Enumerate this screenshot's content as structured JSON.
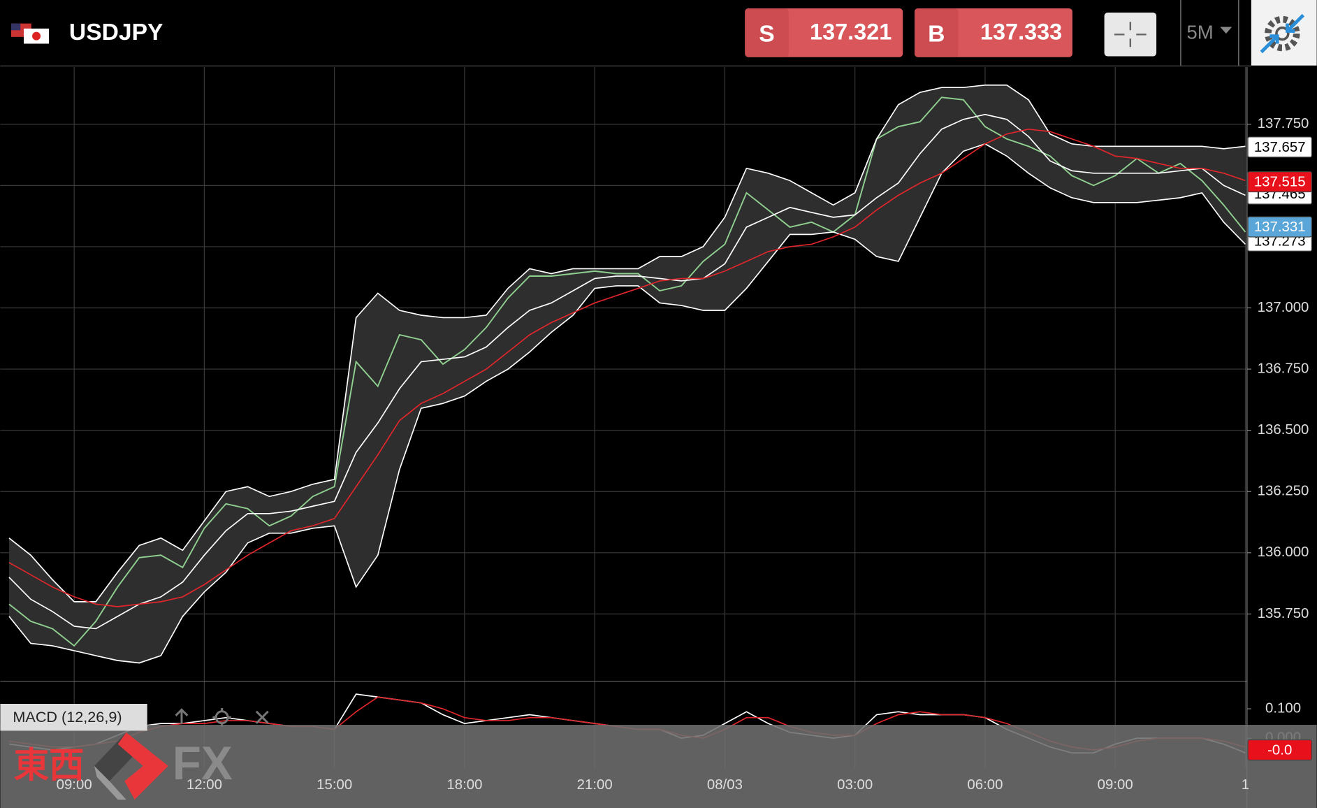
{
  "header": {
    "symbol": "USDJPY",
    "sell_label": "S",
    "sell_price": 137.321,
    "buy_label": "B",
    "buy_price": 137.333,
    "timeframe": "5M"
  },
  "watermark": {
    "text_jp": "東西",
    "text_fx": "FX"
  },
  "chart_data": [
    {
      "type": "line",
      "categories": [
        null,
        null,
        null,
        "09:00",
        null,
        null,
        null,
        null,
        null,
        "12:00",
        null,
        null,
        null,
        null,
        null,
        "15:00",
        null,
        null,
        null,
        null,
        null,
        "18:00",
        null,
        null,
        null,
        null,
        null,
        "21:00",
        null,
        null,
        null,
        null,
        null,
        "08/03",
        null,
        null,
        null,
        null,
        null,
        "03:00",
        null,
        null,
        null,
        null,
        null,
        "06:00",
        null,
        null,
        null,
        null,
        null,
        "09:00",
        null,
        null,
        null,
        null,
        null,
        "1"
      ],
      "ylim": [
        135.479,
        137.983
      ],
      "yticks": [
        {
          "value": 135.75,
          "label": "135.750"
        },
        {
          "value": 136,
          "label": "136.000"
        },
        {
          "value": 136.25,
          "label": "136.250"
        },
        {
          "value": 136.5,
          "label": "136.500"
        },
        {
          "value": 136.75,
          "label": "136.750"
        },
        {
          "value": 137,
          "label": "137.000"
        },
        {
          "value": 137.25,
          "label": "137.250"
        },
        {
          "value": 137.5,
          "label": "137.500"
        },
        {
          "value": 137.75,
          "label": "137.750"
        }
      ],
      "grid": true,
      "band_fill": "#2e2e2e",
      "series": [
        {
          "color": "#8fcf8f",
          "values": [
            135.79,
            135.72,
            135.69,
            135.62,
            135.72,
            135.86,
            135.98,
            135.99,
            135.94,
            136.1,
            136.2,
            136.18,
            136.11,
            136.15,
            136.23,
            136.27,
            136.78,
            136.68,
            136.89,
            136.87,
            136.77,
            136.83,
            136.92,
            137.04,
            137.13,
            137.13,
            137.14,
            137.15,
            137.14,
            137.14,
            137.07,
            137.09,
            137.19,
            137.26,
            137.47,
            137.4,
            137.33,
            137.35,
            137.31,
            137.38,
            137.69,
            137.74,
            137.76,
            137.86,
            137.85,
            137.74,
            137.69,
            137.66,
            137.62,
            137.54,
            137.5,
            137.54,
            137.61,
            137.55,
            137.59,
            137.52,
            137.42,
            137.31
          ]
        },
        {
          "color": "#ffffff",
          "values": [
            136.06,
            135.99,
            135.89,
            135.8,
            135.8,
            135.92,
            136.03,
            136.06,
            136.01,
            136.13,
            136.25,
            136.27,
            136.23,
            136.25,
            136.28,
            136.3,
            136.96,
            137.06,
            136.99,
            136.97,
            136.96,
            136.96,
            136.97,
            137.08,
            137.16,
            137.14,
            137.16,
            137.16,
            137.16,
            137.16,
            137.21,
            137.21,
            137.25,
            137.37,
            137.57,
            137.55,
            137.52,
            137.47,
            137.42,
            137.47,
            137.69,
            137.83,
            137.88,
            137.9,
            137.9,
            137.91,
            137.91,
            137.85,
            137.71,
            137.67,
            137.66,
            137.66,
            137.66,
            137.66,
            137.66,
            137.66,
            137.65,
            137.66
          ]
        },
        {
          "color": "#ffffff",
          "values": [
            135.9,
            135.81,
            135.76,
            135.7,
            135.69,
            135.74,
            135.79,
            135.82,
            135.88,
            135.99,
            136.09,
            136.16,
            136.16,
            136.17,
            136.19,
            136.21,
            136.41,
            136.53,
            136.67,
            136.78,
            136.79,
            136.8,
            136.84,
            136.92,
            136.99,
            137.02,
            137.07,
            137.12,
            137.13,
            137.13,
            137.12,
            137.11,
            137.12,
            137.18,
            137.33,
            137.37,
            137.41,
            137.39,
            137.37,
            137.38,
            137.45,
            137.51,
            137.63,
            137.73,
            137.77,
            137.79,
            137.77,
            137.7,
            137.6,
            137.56,
            137.55,
            137.55,
            137.55,
            137.55,
            137.56,
            137.57,
            137.5,
            137.46
          ]
        },
        {
          "color": "#ffffff",
          "values": [
            135.74,
            135.63,
            135.62,
            135.6,
            135.58,
            135.56,
            135.55,
            135.58,
            135.74,
            135.84,
            135.92,
            136.04,
            136.08,
            136.08,
            136.1,
            136.11,
            135.86,
            135.99,
            136.34,
            136.59,
            136.61,
            136.64,
            136.7,
            136.75,
            136.82,
            136.9,
            136.97,
            137.08,
            137.09,
            137.09,
            137.02,
            137.01,
            136.99,
            136.99,
            137.08,
            137.19,
            137.3,
            137.3,
            137.31,
            137.28,
            137.21,
            137.19,
            137.37,
            137.55,
            137.64,
            137.67,
            137.62,
            137.55,
            137.49,
            137.45,
            137.43,
            137.43,
            137.43,
            137.44,
            137.45,
            137.47,
            137.35,
            137.26
          ]
        },
        {
          "color": "#e0262b",
          "values": [
            135.96,
            135.91,
            135.86,
            135.82,
            135.79,
            135.78,
            135.79,
            135.8,
            135.82,
            135.87,
            135.93,
            135.99,
            136.04,
            136.09,
            136.11,
            136.14,
            136.27,
            136.4,
            136.54,
            136.61,
            136.65,
            136.7,
            136.75,
            136.82,
            136.89,
            136.94,
            136.98,
            137.02,
            137.05,
            137.08,
            137.11,
            137.12,
            137.12,
            137.15,
            137.19,
            137.23,
            137.25,
            137.26,
            137.29,
            137.33,
            137.4,
            137.46,
            137.51,
            137.55,
            137.61,
            137.67,
            137.71,
            137.73,
            137.72,
            137.69,
            137.66,
            137.62,
            137.61,
            137.59,
            137.57,
            137.57,
            137.55,
            137.52
          ]
        }
      ],
      "price_markers": [
        {
          "value": 137.657,
          "label": "137.657",
          "color": "#ffffff"
        },
        {
          "value": 137.465,
          "label": "137.465",
          "color": "#ffffff"
        },
        {
          "value": 137.273,
          "label": "137.273",
          "color": "#ffffff"
        },
        {
          "value": 137.515,
          "label": "137.515",
          "color": "#e8101a"
        },
        {
          "value": 137.331,
          "label": "137.331",
          "color": "#5aa6d8"
        }
      ]
    },
    {
      "type": "line",
      "title": "MACD (12,26,9)",
      "ylim": [
        -0.103,
        0.191
      ],
      "yticks": [
        {
          "value": 0,
          "label": "0.000"
        },
        {
          "value": 0.1,
          "label": "0.100"
        }
      ],
      "series": [
        {
          "color": "#ffffff",
          "values": [
            -0.02,
            -0.03,
            -0.04,
            -0.03,
            -0.02,
            0.01,
            0.04,
            0.05,
            0.05,
            0.06,
            0.07,
            0.06,
            0.05,
            0.04,
            0.04,
            0.03,
            0.15,
            0.14,
            0.13,
            0.12,
            0.08,
            0.05,
            0.06,
            0.07,
            0.08,
            0.07,
            0.06,
            0.05,
            0.04,
            0.03,
            0.03,
            0.0,
            0.01,
            0.05,
            0.09,
            0.05,
            0.02,
            0.01,
            0.0,
            0.01,
            0.08,
            0.09,
            0.08,
            0.08,
            0.08,
            0.07,
            0.03,
            0.0,
            -0.03,
            -0.05,
            -0.05,
            -0.02,
            0.0,
            0.0,
            0.0,
            0.0,
            -0.02,
            -0.05
          ]
        },
        {
          "color": "#e0262b",
          "values": [
            -0.01,
            -0.02,
            -0.03,
            -0.03,
            -0.02,
            -0.01,
            0.02,
            0.04,
            0.05,
            0.05,
            0.06,
            0.06,
            0.05,
            0.04,
            0.04,
            0.03,
            0.09,
            0.14,
            0.13,
            0.12,
            0.1,
            0.07,
            0.06,
            0.06,
            0.07,
            0.07,
            0.06,
            0.05,
            0.04,
            0.03,
            0.03,
            0.01,
            0.0,
            0.03,
            0.07,
            0.07,
            0.04,
            0.02,
            0.01,
            0.01,
            0.05,
            0.08,
            0.09,
            0.08,
            0.08,
            0.07,
            0.05,
            0.02,
            -0.01,
            -0.03,
            -0.04,
            -0.03,
            -0.01,
            0.0,
            0.0,
            0.0,
            -0.01,
            -0.03
          ]
        }
      ],
      "price_markers": [
        {
          "value": -0.04,
          "label": "-0.0",
          "color": "#e8101a"
        }
      ]
    }
  ]
}
